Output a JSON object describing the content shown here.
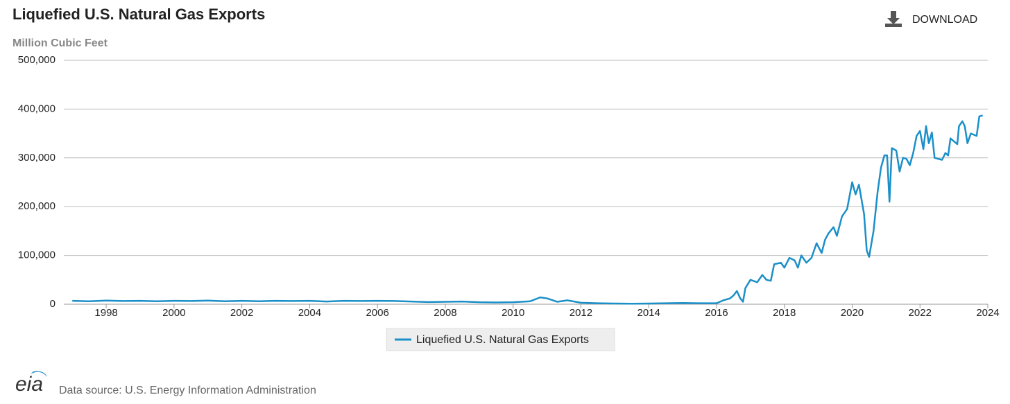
{
  "chart_data": {
    "type": "line",
    "title": "Liquefied U.S. Natural Gas Exports",
    "subtitle": "Million Cubic Feet",
    "download_label": "DOWNLOAD",
    "source": "Data source: U.S. Energy Information Administration",
    "logo": "eia",
    "xlim": [
      1996.75,
      2024
    ],
    "xticks": [
      1998,
      2000,
      2002,
      2004,
      2006,
      2008,
      2010,
      2012,
      2014,
      2016,
      2018,
      2020,
      2022,
      2024
    ],
    "ylim": [
      0,
      500000
    ],
    "yticks": [
      0,
      {
        "value": 100000,
        "label": "100,000"
      },
      {
        "value": 200000,
        "label": "200,000"
      },
      {
        "value": 300000,
        "label": "300,000"
      },
      {
        "value": 400000,
        "label": "400,000"
      },
      {
        "value": 500000,
        "label": "500,000"
      }
    ],
    "grid": true,
    "legend": "bottom",
    "x": [
      1997.0,
      1997.5,
      1998.0,
      1998.5,
      1999.0,
      1999.5,
      2000.0,
      2000.5,
      2001.0,
      2001.5,
      2002.0,
      2002.5,
      2003.0,
      2003.5,
      2004.0,
      2004.5,
      2005.0,
      2005.5,
      2006.0,
      2006.5,
      2007.0,
      2007.5,
      2008.0,
      2008.5,
      2009.0,
      2009.5,
      2010.0,
      2010.5,
      2010.8,
      2011.0,
      2011.3,
      2011.6,
      2012.0,
      2012.5,
      2013.0,
      2013.5,
      2014.0,
      2014.5,
      2015.0,
      2015.5,
      2016.0,
      2016.2,
      2016.4,
      2016.5,
      2016.6,
      2016.7,
      2016.78,
      2016.85,
      2017.0,
      2017.2,
      2017.35,
      2017.47,
      2017.6,
      2017.7,
      2017.9,
      2018.0,
      2018.15,
      2018.3,
      2018.4,
      2018.5,
      2018.65,
      2018.8,
      2018.95,
      2019.1,
      2019.2,
      2019.3,
      2019.45,
      2019.55,
      2019.7,
      2019.85,
      2020.0,
      2020.1,
      2020.2,
      2020.35,
      2020.43,
      2020.5,
      2020.63,
      2020.75,
      2020.85,
      2020.95,
      2021.03,
      2021.1,
      2021.17,
      2021.3,
      2021.4,
      2021.5,
      2021.6,
      2021.7,
      2021.8,
      2021.9,
      2022.0,
      2022.1,
      2022.18,
      2022.26,
      2022.35,
      2022.43,
      2022.65,
      2022.75,
      2022.83,
      2022.9,
      2023.1,
      2023.15,
      2023.25,
      2023.32,
      2023.4,
      2023.5,
      2023.67,
      2023.75,
      2023.85
    ],
    "series": [
      {
        "name": "Liquefied U.S. Natural Gas Exports",
        "color": "#1b8fc8",
        "values": [
          7000,
          6000,
          7500,
          6500,
          7000,
          6000,
          7000,
          6500,
          7500,
          6000,
          7000,
          6000,
          7000,
          6500,
          7000,
          5500,
          7000,
          6500,
          7000,
          6500,
          5500,
          4500,
          5000,
          5500,
          4000,
          3500,
          4000,
          6000,
          14000,
          12000,
          5000,
          8000,
          3000,
          2000,
          1500,
          1000,
          1500,
          2000,
          2500,
          2000,
          2000,
          8000,
          12000,
          18000,
          27000,
          12000,
          5000,
          33000,
          50000,
          45000,
          60000,
          50000,
          48000,
          82000,
          85000,
          75000,
          95000,
          90000,
          75000,
          100000,
          85000,
          95000,
          125000,
          105000,
          132000,
          145000,
          158000,
          140000,
          180000,
          195000,
          250000,
          225000,
          245000,
          185000,
          110000,
          97000,
          150000,
          230000,
          280000,
          305000,
          305000,
          210000,
          320000,
          315000,
          272000,
          300000,
          298000,
          285000,
          310000,
          345000,
          355000,
          318000,
          365000,
          330000,
          352000,
          300000,
          296000,
          310000,
          305000,
          340000,
          328000,
          365000,
          375000,
          365000,
          330000,
          350000,
          345000,
          385000,
          387000
        ]
      }
    ]
  }
}
